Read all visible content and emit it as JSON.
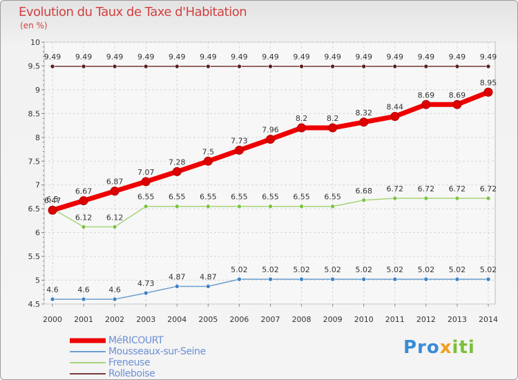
{
  "header": {
    "title": "Evolution du Taux de Taxe d'Habitation",
    "unit": "(en %)"
  },
  "brand": {
    "part1": "Pro",
    "part2": "x",
    "part3": "iti"
  },
  "chart_data": {
    "type": "line",
    "title": "Evolution du Taux de Taxe d'Habitation",
    "ylabel": "(en %)",
    "xlabel": "",
    "ylim": [
      4.5,
      10
    ],
    "yticks": [
      4.5,
      5,
      5.5,
      6,
      6.5,
      7,
      7.5,
      8,
      8.5,
      9,
      9.5,
      10
    ],
    "ytick_labels": [
      "4.5",
      "5",
      "5.5",
      "6",
      "6.5",
      "7",
      "7.5",
      "8",
      "8.5",
      "9",
      "9.5",
      "10"
    ],
    "categories": [
      "2000",
      "2001",
      "2002",
      "2003",
      "2004",
      "2005",
      "2006",
      "2007",
      "2008",
      "2009",
      "2010",
      "2011",
      "2012",
      "2013",
      "2014"
    ],
    "grid": true,
    "legend": "bottom-left",
    "series": [
      {
        "name": "Rolleboise",
        "color": "#7a3a3a",
        "marker": "#5a2020",
        "width": 1.5,
        "values": [
          9.49,
          9.49,
          9.49,
          9.49,
          9.49,
          9.49,
          9.49,
          9.49,
          9.49,
          9.49,
          9.49,
          9.49,
          9.49,
          9.49,
          9.49
        ],
        "labels": [
          "9.49",
          "9.49",
          "9.49",
          "9.49",
          "9.49",
          "9.49",
          "9.49",
          "9.49",
          "9.49",
          "9.49",
          "9.49",
          "9.49",
          "9.49",
          "9.49",
          "9.49"
        ]
      },
      {
        "name": "Freneuse",
        "color": "#a6d47a",
        "marker": "#7cc242",
        "width": 1.5,
        "values": [
          6.5,
          6.12,
          6.12,
          6.55,
          6.55,
          6.55,
          6.55,
          6.55,
          6.55,
          6.55,
          6.68,
          6.72,
          6.72,
          6.72,
          6.72
        ],
        "labels": [
          "6.5",
          "6.12",
          "6.12",
          "6.55",
          "6.55",
          "6.55",
          "6.55",
          "6.55",
          "6.55",
          "6.55",
          "6.68",
          "6.72",
          "6.72",
          "6.72",
          "6.72"
        ]
      },
      {
        "name": "Mousseaux-sur-Seine",
        "color": "#6a9fd0",
        "marker": "#3d82c4",
        "width": 1.5,
        "values": [
          4.6,
          4.6,
          4.6,
          4.73,
          4.87,
          4.87,
          5.02,
          5.02,
          5.02,
          5.02,
          5.02,
          5.02,
          5.02,
          5.02,
          5.02
        ],
        "labels": [
          "4.6",
          "4.6",
          "4.6",
          "4.73",
          "4.87",
          "4.87",
          "5.02",
          "5.02",
          "5.02",
          "5.02",
          "5.02",
          "5.02",
          "5.02",
          "5.02",
          "5.02"
        ]
      },
      {
        "name": "MéRICOURT",
        "color": "#ee0000",
        "marker": "#dd0000",
        "width": 7,
        "values": [
          6.47,
          6.67,
          6.87,
          7.07,
          7.28,
          7.5,
          7.73,
          7.96,
          8.2,
          8.2,
          8.32,
          8.44,
          8.69,
          8.69,
          8.95
        ],
        "labels": [
          "6.47",
          "6.67",
          "6.87",
          "7.07",
          "7.28",
          "7.5",
          "7.73",
          "7.96",
          "8.2",
          "8.2",
          "8.32",
          "8.44",
          "8.69",
          "8.69",
          "8.95"
        ]
      }
    ],
    "legend_order": [
      "MéRICOURT",
      "Mousseaux-sur-Seine",
      "Freneuse",
      "Rolleboise"
    ]
  }
}
